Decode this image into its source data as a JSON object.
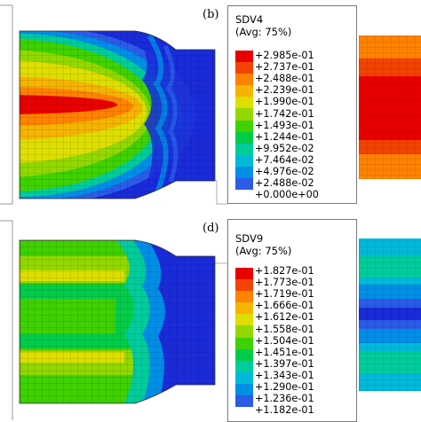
{
  "panels": [
    {
      "label": "(b)",
      "legend_title": "SDV4",
      "legend_subtitle": "(Avg: 75%)",
      "values": [
        "+2.985e-01",
        "+2.737e-01",
        "+2.488e-01",
        "+2.239e-01",
        "+1.990e-01",
        "+1.742e-01",
        "+1.493e-01",
        "+1.244e-01",
        "+9.952e-02",
        "+7.464e-02",
        "+4.976e-02",
        "+2.488e-02",
        "+0.000e+00"
      ]
    },
    {
      "label": "(d)",
      "legend_title": "SDV9",
      "legend_subtitle": "(Avg: 75%)",
      "values": [
        "+1.827e-01",
        "+1.773e-01",
        "+1.719e-01",
        "+1.666e-01",
        "+1.612e-01",
        "+1.558e-01",
        "+1.504e-01",
        "+1.451e-01",
        "+1.397e-01",
        "+1.343e-01",
        "+1.290e-01",
        "+1.236e-01",
        "+1.182e-01"
      ]
    }
  ],
  "colors": {
    "contour_scale": [
      "#e80000",
      "#f24300",
      "#ff8200",
      "#f5b400",
      "#dede00",
      "#92d800",
      "#3fd100",
      "#00cc4a",
      "#00cc9c",
      "#00b9d9",
      "#008ee6",
      "#2b5ce8",
      "#1a2bd9"
    ]
  }
}
